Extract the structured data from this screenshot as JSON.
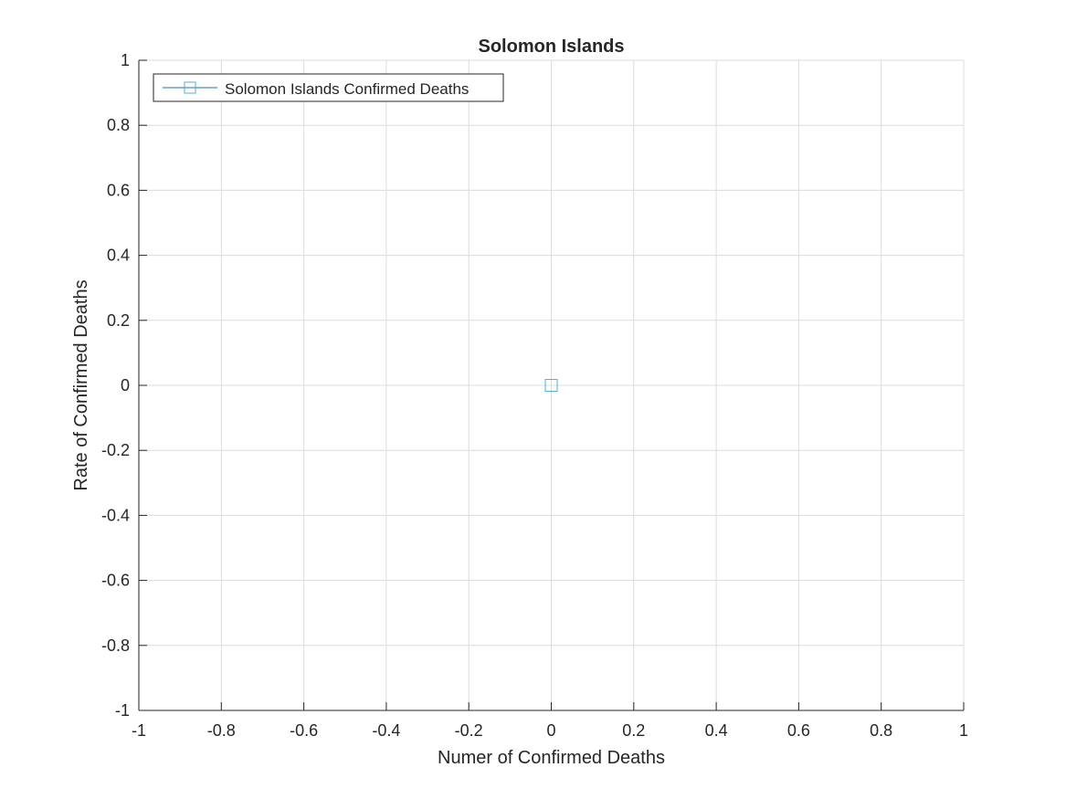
{
  "chart_data": {
    "type": "scatter",
    "title": "Solomon Islands",
    "xlabel": "Numer of Confirmed Deaths",
    "ylabel": "Rate of Confirmed Deaths",
    "xlim": [
      -1,
      1
    ],
    "ylim": [
      -1,
      1
    ],
    "xticks": [
      "-1",
      "-0.8",
      "-0.6",
      "-0.4",
      "-0.2",
      "0",
      "0.2",
      "0.4",
      "0.6",
      "0.8",
      "1"
    ],
    "yticks": [
      "1",
      "0.8",
      "0.6",
      "0.4",
      "0.2",
      "0",
      "-0.2",
      "-0.4",
      "-0.6",
      "-0.8",
      "-1"
    ],
    "grid": true,
    "legend_position": "top-left",
    "series": [
      {
        "name": "Solomon Islands Confirmed Deaths",
        "marker": "square",
        "color": "#4fb3d9",
        "line_color": "#1f6fb2",
        "x": [
          0
        ],
        "y": [
          0
        ]
      }
    ]
  }
}
